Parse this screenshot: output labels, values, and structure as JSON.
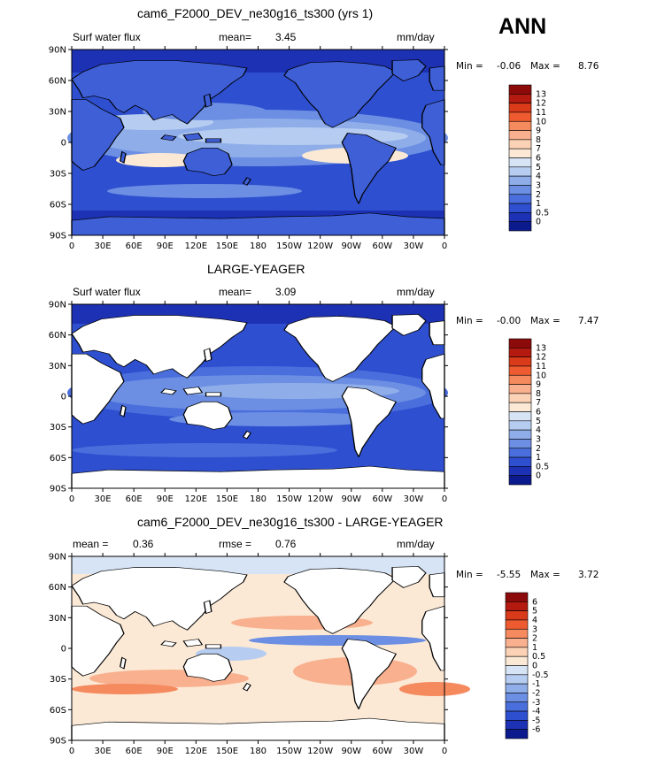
{
  "season": "ANN",
  "units": "mm/day",
  "lat_ticks": [
    "90N",
    "60N",
    "30N",
    "0",
    "30S",
    "60S",
    "90S"
  ],
  "lon_ticks": [
    "0",
    "30E",
    "60E",
    "90E",
    "120E",
    "150E",
    "180",
    "150W",
    "120W",
    "90W",
    "60W",
    "30W",
    "0"
  ],
  "panels": [
    {
      "title": "cam6_F2000_DEV_ne30g16_ts300 (yrs 1)",
      "left_label": "Surf water flux",
      "stat_label": "mean=",
      "stat_value": "3.45",
      "units": "mm/day",
      "min_text": "Min =",
      "min_value": "-0.06",
      "max_text": "Max =",
      "max_value": "8.76",
      "colorbar_labels": [
        "13",
        "12",
        "11",
        "10",
        "9",
        "8",
        "7",
        "6",
        "5",
        "4",
        "3",
        "2",
        "1",
        "0.5",
        "0"
      ],
      "colorbar_colors": [
        "#8c0a0a",
        "#b41a0f",
        "#d93a1a",
        "#ef5b30",
        "#f58a5e",
        "#f8b08e",
        "#fbd2b6",
        "#fbe9d6",
        "#d6e4f6",
        "#b6cdf1",
        "#8faee9",
        "#6c8fe3",
        "#4a6fdc",
        "#2e4fcf",
        "#1d31b4",
        "#0b1a8c"
      ]
    },
    {
      "title": "LARGE-YEAGER",
      "left_label": "Surf water flux",
      "stat_label": "mean=",
      "stat_value": "3.09",
      "units": "mm/day",
      "min_text": "Min =",
      "min_value": "-0.00",
      "max_text": "Max =",
      "max_value": "7.47",
      "colorbar_labels": [
        "13",
        "12",
        "11",
        "10",
        "9",
        "8",
        "7",
        "6",
        "5",
        "4",
        "3",
        "2",
        "1",
        "0.5",
        "0"
      ],
      "colorbar_colors": [
        "#8c0a0a",
        "#b41a0f",
        "#d93a1a",
        "#ef5b30",
        "#f58a5e",
        "#f8b08e",
        "#fbd2b6",
        "#fbe9d6",
        "#d6e4f6",
        "#b6cdf1",
        "#8faee9",
        "#6c8fe3",
        "#4a6fdc",
        "#2e4fcf",
        "#1d31b4",
        "#0b1a8c"
      ]
    },
    {
      "title": "cam6_F2000_DEV_ne30g16_ts300 - LARGE-YEAGER",
      "left_label": "mean =",
      "left_value": "0.36",
      "stat_label": "rmse =",
      "stat_value": "0.76",
      "units": "mm/day",
      "min_text": "Min =",
      "min_value": "-5.55",
      "max_text": "Max =",
      "max_value": "3.72",
      "colorbar_labels": [
        "6",
        "5",
        "4",
        "3",
        "2",
        "1",
        "0.5",
        "0",
        "-0.5",
        "-1",
        "-2",
        "-3",
        "-4",
        "-5",
        "-6"
      ],
      "colorbar_colors": [
        "#8c0a0a",
        "#b41a0f",
        "#d93a1a",
        "#ef5b30",
        "#f58a5e",
        "#f8b08e",
        "#fbd2b6",
        "#fbe9d6",
        "#d6e4f6",
        "#b6cdf1",
        "#8faee9",
        "#6c8fe3",
        "#4a6fdc",
        "#2e4fcf",
        "#1d31b4",
        "#0b1a8c"
      ]
    }
  ]
}
